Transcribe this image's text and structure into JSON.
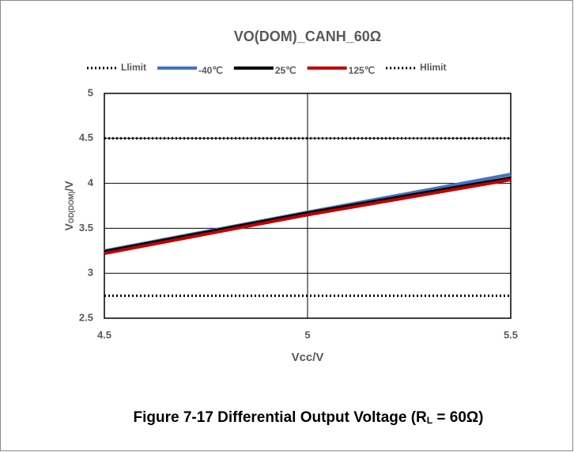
{
  "chart_data": {
    "type": "line",
    "title": "VO(DOM)_CANH_60Ω",
    "xlabel": "Vcc/V",
    "ylabel": [
      "V",
      "OD(DOM)",
      "/V"
    ],
    "caption": [
      "Figure 7-17  Differential Output Voltage (R",
      "L",
      " = 60Ω)"
    ],
    "x": [
      4.5,
      5,
      5.5
    ],
    "xlim": [
      4.5,
      5.5
    ],
    "xticks": [
      4.5,
      5,
      5.5
    ],
    "ylim": [
      2.5,
      5
    ],
    "yticks": [
      2.5,
      3,
      3.5,
      4,
      4.5,
      5
    ],
    "grid": true,
    "legend": "top",
    "series": [
      {
        "name": "Llimit",
        "color": "#000000",
        "dash": "dotted",
        "values": [
          2.75,
          2.75,
          2.75
        ]
      },
      {
        "name": "-40℃",
        "color": "#4472c4",
        "dash": "solid",
        "values": [
          3.25,
          3.68,
          4.1
        ]
      },
      {
        "name": "25℃",
        "color": "#000000",
        "dash": "solid",
        "values": [
          3.24,
          3.67,
          4.06
        ]
      },
      {
        "name": "125℃",
        "color": "#c00000",
        "dash": "solid",
        "values": [
          3.22,
          3.65,
          4.04
        ]
      },
      {
        "name": "Hlimit",
        "color": "#000000",
        "dash": "dotted",
        "values": [
          4.5,
          4.5,
          4.5
        ]
      }
    ]
  }
}
